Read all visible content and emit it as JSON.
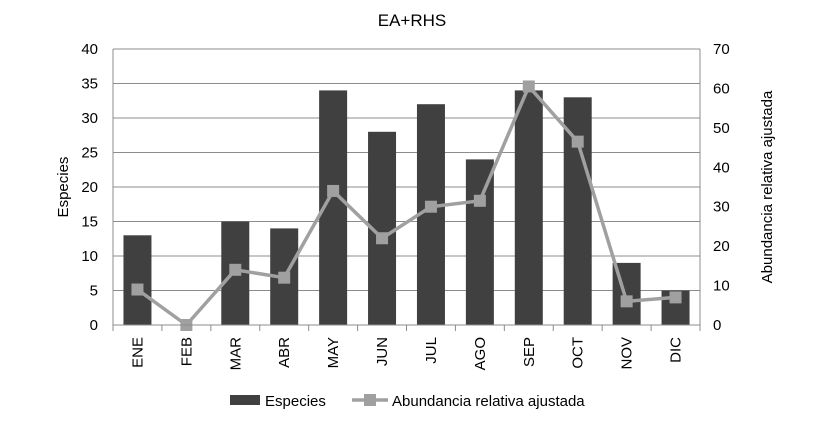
{
  "chart_data": {
    "type": "bar",
    "title": "EA+RHS",
    "categories": [
      "ENE",
      "FEB",
      "MAR",
      "ABR",
      "MAY",
      "JUN",
      "JUL",
      "AGO",
      "SEP",
      "OCT",
      "NOV",
      "DIC"
    ],
    "series": [
      {
        "name": "Especies",
        "type": "bar",
        "axis": "left",
        "color": "#404040",
        "values": [
          13,
          0,
          15,
          14,
          34,
          28,
          32,
          24,
          34,
          33,
          9,
          5
        ]
      },
      {
        "name": "Abundancia relativa ajustada",
        "type": "line",
        "axis": "right",
        "color": "#a0a0a0",
        "marker": "square",
        "values": [
          9,
          0,
          14,
          12,
          34,
          22,
          30,
          31.5,
          60.5,
          46.5,
          6,
          7
        ]
      }
    ],
    "ylabel": "Especies",
    "ylim": [
      0,
      40
    ],
    "yticks": [
      "0",
      "5",
      "10",
      "15",
      "20",
      "25",
      "30",
      "35",
      "40"
    ],
    "y2label": "Abundancia relativa ajustada",
    "y2lim": [
      0,
      70
    ],
    "y2ticks": [
      "0",
      "10",
      "20",
      "30",
      "40",
      "50",
      "60",
      "70"
    ],
    "xlabel": "",
    "grid": true,
    "legend_position": "bottom"
  }
}
